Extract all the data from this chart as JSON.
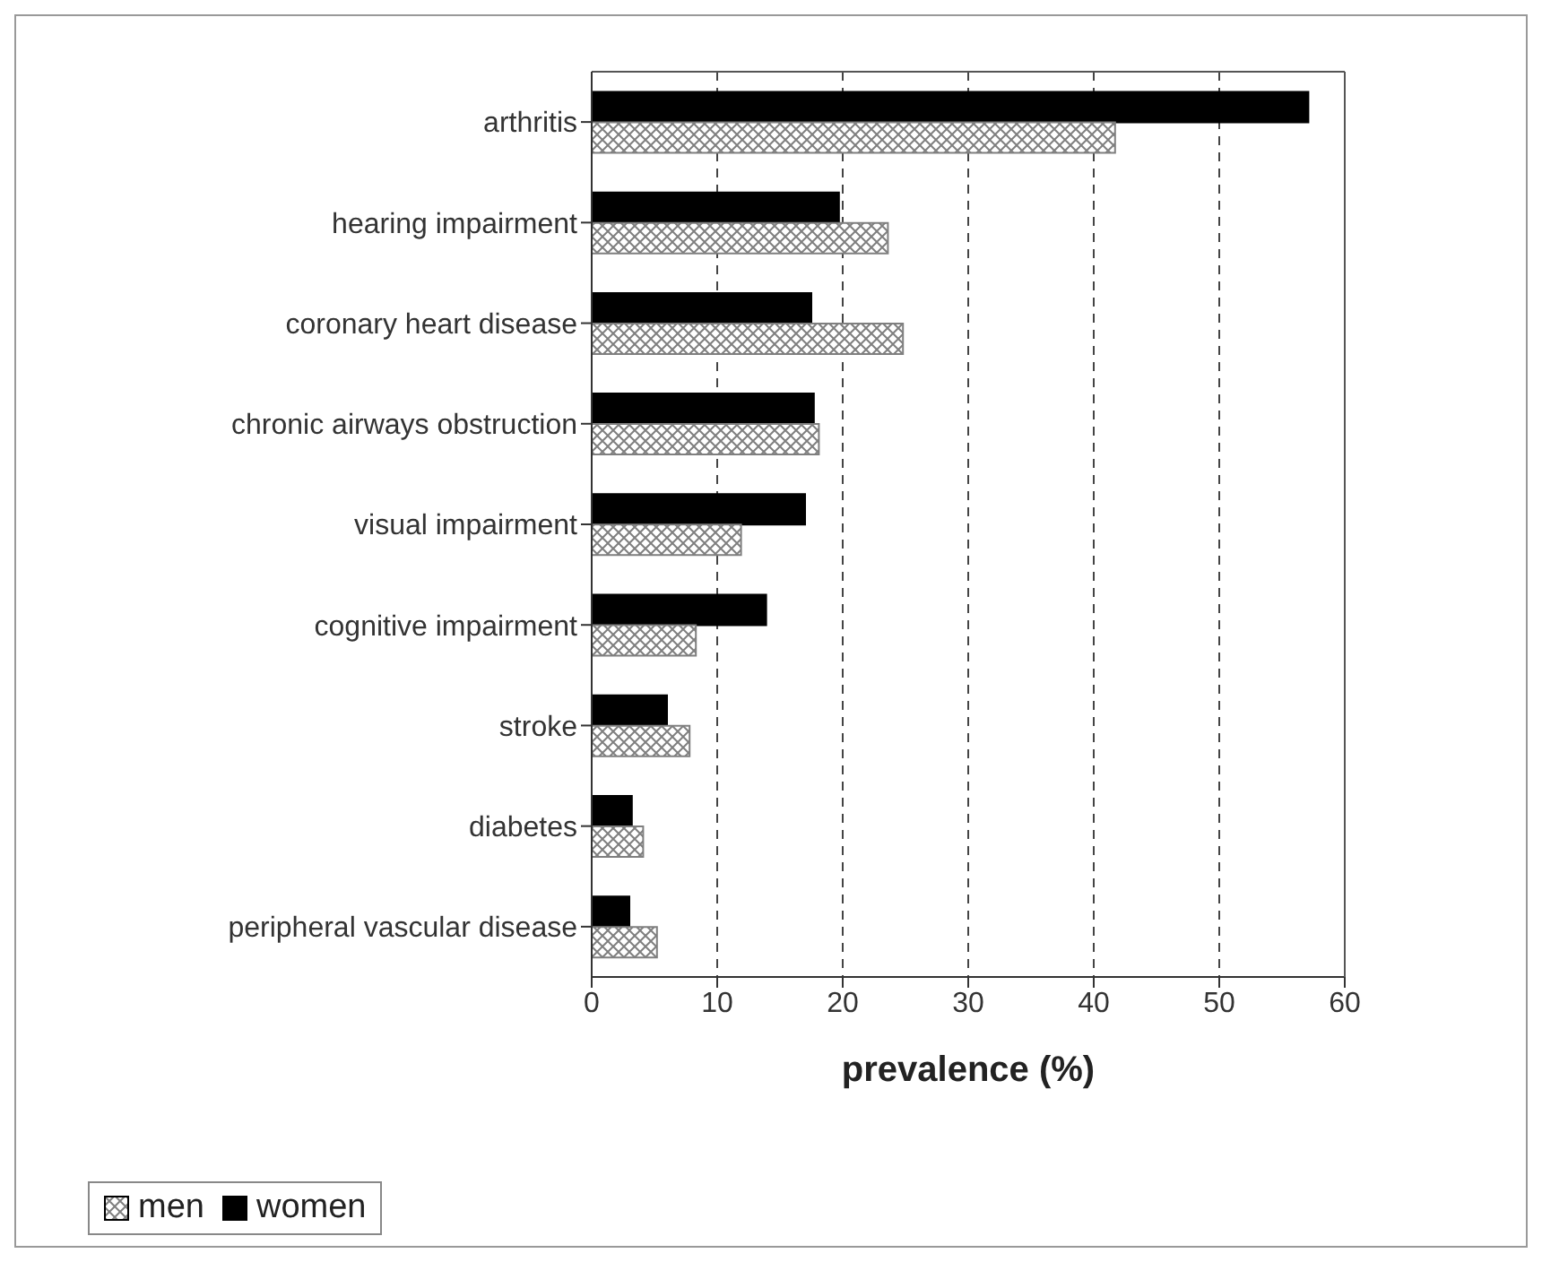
{
  "chart_data": {
    "type": "bar",
    "orientation": "horizontal",
    "xlabel": "prevalence (%)",
    "categories": [
      "arthritis",
      "hearing impairment",
      "coronary heart disease",
      "chronic airways obstruction",
      "visual impairment",
      "cognitive  impairment",
      "stroke",
      "diabetes",
      "peripheral vascular disease"
    ],
    "series": [
      {
        "name": "men",
        "color": "#7f7f7f",
        "values": [
          41.7,
          23.6,
          24.8,
          18.1,
          11.9,
          8.3,
          7.8,
          4.1,
          5.2
        ]
      },
      {
        "name": "women",
        "color": "#000000",
        "values": [
          57.1,
          19.7,
          17.5,
          17.7,
          17.0,
          13.9,
          6.0,
          3.2,
          3.0
        ]
      }
    ],
    "xlim": [
      0,
      60
    ],
    "xticks": [
      0,
      10,
      20,
      30,
      40,
      50,
      60
    ],
    "grid": "x",
    "legend": "bottom left"
  }
}
